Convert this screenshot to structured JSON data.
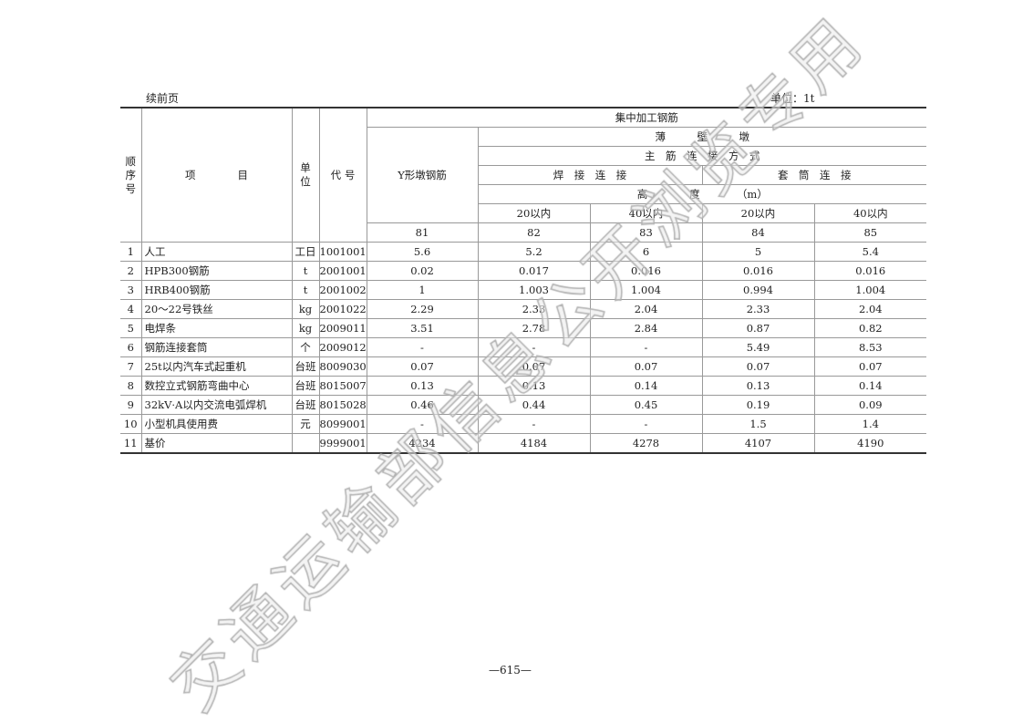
{
  "header": {
    "continued": "续前页",
    "unit": "单位：1t"
  },
  "table": {
    "h_seq": "顺序号",
    "h_item": "项　　　　目",
    "h_unit": "单位",
    "h_code": "代 号",
    "h_group": "集中加工钢筋",
    "h_y": "Y形墩钢筋",
    "h_thin": "薄　　　壁　　　墩",
    "h_method": "主　筋　连　接　方　式",
    "h_weld": "焊　接　连　接",
    "h_sleeve": "套　筒　连　接",
    "h_height": "高　　　　度　　　　（m）",
    "heights": [
      "20以内",
      "40以内",
      "20以内",
      "40以内"
    ],
    "col_nums": [
      "81",
      "82",
      "83",
      "84",
      "85"
    ],
    "rows": [
      {
        "no": "1",
        "item": "人工",
        "unit": "工日",
        "code": "1001001",
        "v": [
          "5.6",
          "5.2",
          "6",
          "5",
          "5.4"
        ]
      },
      {
        "no": "2",
        "item": "HPB300钢筋",
        "unit": "t",
        "code": "2001001",
        "v": [
          "0.02",
          "0.017",
          "0.016",
          "0.016",
          "0.016"
        ]
      },
      {
        "no": "3",
        "item": "HRB400钢筋",
        "unit": "t",
        "code": "2001002",
        "v": [
          "1",
          "1.003",
          "1.004",
          "0.994",
          "1.004"
        ]
      },
      {
        "no": "4",
        "item": "20～22号铁丝",
        "unit": "kg",
        "code": "2001022",
        "v": [
          "2.29",
          "2.33",
          "2.04",
          "2.33",
          "2.04"
        ]
      },
      {
        "no": "5",
        "item": "电焊条",
        "unit": "kg",
        "code": "2009011",
        "v": [
          "3.51",
          "2.78",
          "2.84",
          "0.87",
          "0.82"
        ]
      },
      {
        "no": "6",
        "item": "钢筋连接套筒",
        "unit": "个",
        "code": "2009012",
        "v": [
          "-",
          "-",
          "-",
          "5.49",
          "8.53"
        ]
      },
      {
        "no": "7",
        "item": "25t以内汽车式起重机",
        "unit": "台班",
        "code": "8009030",
        "v": [
          "0.07",
          "0.07",
          "0.07",
          "0.07",
          "0.07"
        ]
      },
      {
        "no": "8",
        "item": "数控立式钢筋弯曲中心",
        "unit": "台班",
        "code": "8015007",
        "v": [
          "0.13",
          "0.13",
          "0.14",
          "0.13",
          "0.14"
        ]
      },
      {
        "no": "9",
        "item": "32kV·A以内交流电弧焊机",
        "unit": "台班",
        "code": "8015028",
        "v": [
          "0.46",
          "0.44",
          "0.45",
          "0.19",
          "0.09"
        ]
      },
      {
        "no": "10",
        "item": "小型机具使用费",
        "unit": "元",
        "code": "8099001",
        "v": [
          "-",
          "-",
          "-",
          "1.5",
          "1.4"
        ]
      },
      {
        "no": "11",
        "item": "基价",
        "unit": "",
        "code": "9999001",
        "v": [
          "4234",
          "4184",
          "4278",
          "4107",
          "4190"
        ]
      }
    ]
  },
  "footer": {
    "page": "—615—"
  },
  "watermark": "交通运输部信息公开浏览专用"
}
